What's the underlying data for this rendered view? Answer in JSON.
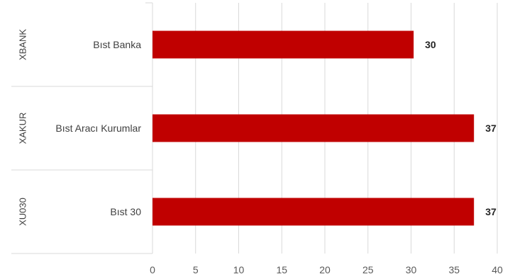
{
  "chart_data": {
    "type": "bar",
    "orientation": "horizontal",
    "title": "",
    "xlabel": "",
    "ylabel": "",
    "groups": [
      "XBANK",
      "XAKUR",
      "XU030"
    ],
    "categories": [
      "Bıst Banka",
      "Bıst Aracı Kurumlar",
      "Bıst 30"
    ],
    "values": [
      30.3,
      37.3,
      37.3
    ],
    "data_labels": [
      "30",
      "37",
      "37"
    ],
    "xlim": [
      0,
      40
    ],
    "x_ticks": [
      "0",
      "5",
      "10",
      "15",
      "20",
      "25",
      "30",
      "35",
      "40"
    ],
    "grid": true,
    "legend": "none",
    "bar_color": "#C00000"
  }
}
